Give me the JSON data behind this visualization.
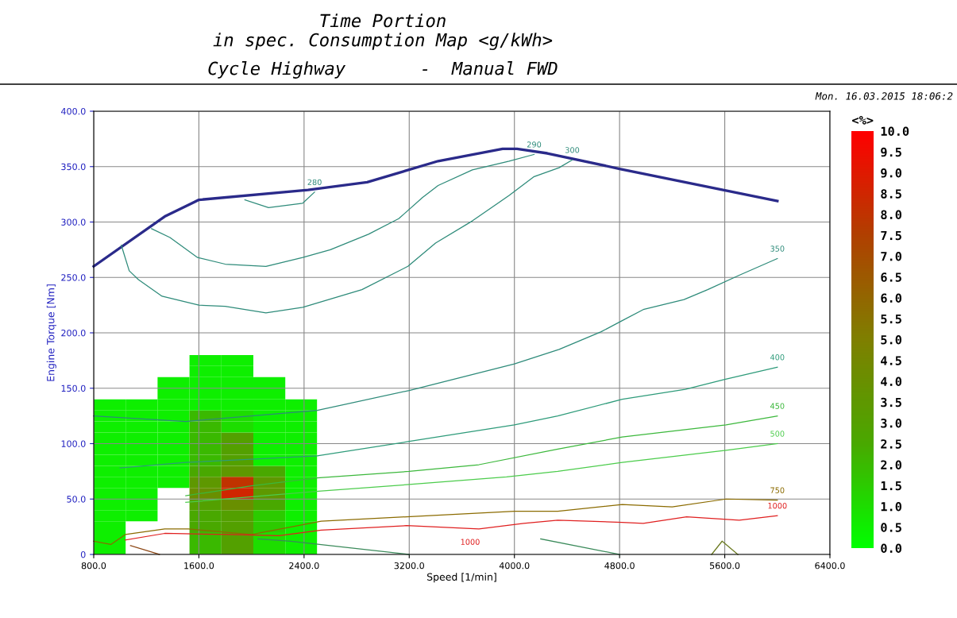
{
  "chart_data": [
    {
      "type": "heatmap",
      "clabel": "<%>",
      "clim": [
        0,
        10
      ],
      "cticks": [
        {
          "value": 0,
          "label": "0.0"
        },
        {
          "value": 0.5,
          "label": "0.5"
        },
        {
          "value": 1,
          "label": "1.0"
        },
        {
          "value": 1.5,
          "label": "1.5"
        },
        {
          "value": 2,
          "label": "2.0"
        },
        {
          "value": 2.5,
          "label": "2.5"
        },
        {
          "value": 3,
          "label": "3.0"
        },
        {
          "value": 3.5,
          "label": "3.5"
        },
        {
          "value": 4,
          "label": "4.0"
        },
        {
          "value": 4.5,
          "label": "4.5"
        },
        {
          "value": 5,
          "label": "5.0"
        },
        {
          "value": 5.5,
          "label": "5.5"
        },
        {
          "value": 6,
          "label": "6.0"
        },
        {
          "value": 6.5,
          "label": "6.5"
        },
        {
          "value": 7,
          "label": "7.0"
        },
        {
          "value": 7.5,
          "label": "7.5"
        },
        {
          "value": 8,
          "label": "8.0"
        },
        {
          "value": 8.5,
          "label": "8.5"
        },
        {
          "value": 9,
          "label": "9.0"
        },
        {
          "value": 9.5,
          "label": "9.5"
        },
        {
          "value": 10,
          "label": "10.0"
        }
      ],
      "categories": [
        null,
        null,
        null,
        null,
        null,
        null,
        null
      ],
      "y_categories": [
        null,
        null,
        null,
        null,
        null,
        null,
        null,
        null,
        null,
        null,
        null,
        null,
        null,
        null,
        null,
        null,
        null,
        null
      ],
      "cells": [
        [
          null,
          null,
          null,
          0.5,
          0.5,
          null,
          null
        ],
        [
          null,
          null,
          null,
          0.5,
          0.5,
          null,
          null
        ],
        [
          null,
          null,
          0.5,
          0.5,
          0.5,
          0.5,
          null
        ],
        [
          null,
          null,
          0.5,
          0.5,
          0.5,
          0.5,
          null
        ],
        [
          0.5,
          0.5,
          0.5,
          0.5,
          0.5,
          0.5,
          0.5
        ],
        [
          0.5,
          0.5,
          0.5,
          2.0,
          1.0,
          0.5,
          0.5
        ],
        [
          0.5,
          0.5,
          0.5,
          2.0,
          1.0,
          0.5,
          0.5
        ],
        [
          0.5,
          0.5,
          0.5,
          2.0,
          3.0,
          0.5,
          0.5
        ],
        [
          0.5,
          0.5,
          0.5,
          2.0,
          3.0,
          0.5,
          0.5
        ],
        [
          0.5,
          0.5,
          0.5,
          2.0,
          3.0,
          0.5,
          0.5
        ],
        [
          0.5,
          0.5,
          0.5,
          2.5,
          3.5,
          2.5,
          0.5
        ],
        [
          0.5,
          0.5,
          0.5,
          3.5,
          8.0,
          3.5,
          0.5
        ],
        [
          0.5,
          0.5,
          null,
          4.0,
          8.5,
          3.5,
          0.5
        ],
        [
          0.5,
          0.5,
          null,
          3.0,
          4.0,
          2.5,
          0.5
        ],
        [
          0.5,
          0.5,
          null,
          2.5,
          3.0,
          1.5,
          0.5
        ],
        [
          0.5,
          null,
          null,
          2.5,
          3.0,
          1.5,
          0.5
        ],
        [
          0.5,
          null,
          null,
          2.0,
          3.0,
          1.0,
          0.5
        ],
        [
          0.5,
          null,
          null,
          2.0,
          3.0,
          1.0,
          0.5
        ]
      ]
    },
    {
      "type": "line",
      "title": "Time Portion\nin spec. Consumption Map <g/kWh>",
      "subtitle": "Cycle Highway       -  Manual FWD",
      "xlabel": "Speed [1/min]",
      "ylabel": "Engine Torque [Nm]",
      "xlim": [
        800,
        6400
      ],
      "ylim": [
        0,
        400
      ],
      "xticks": [
        {
          "value": 800,
          "label": "800.0"
        },
        {
          "value": 1600,
          "label": "1600.0"
        },
        {
          "value": 2400,
          "label": "2400.0"
        },
        {
          "value": 3200,
          "label": "3200.0"
        },
        {
          "value": 4000,
          "label": "4000.0"
        },
        {
          "value": 4800,
          "label": "4800.0"
        },
        {
          "value": 5600,
          "label": "5600.0"
        },
        {
          "value": 6400,
          "label": "6400.0"
        }
      ],
      "yticks": [
        0,
        {
          "value": 50,
          "label": "50.0"
        },
        {
          "value": 100,
          "label": "100.0"
        },
        {
          "value": 150,
          "label": "150.0"
        },
        {
          "value": 200,
          "label": "200.0"
        },
        {
          "value": 250,
          "label": "250.0"
        },
        {
          "value": 300,
          "label": "300.0"
        },
        {
          "value": 350,
          "label": "350.0"
        },
        {
          "value": 400,
          "label": "400.0"
        }
      ],
      "grid": true,
      "legend": false,
      "marker": "none",
      "line_style": "solid",
      "annotations": [
        "Mon. 16.03.2015 18:06:2",
        "1000"
      ],
      "series": [
        {
          "color": "#2a2a8a",
          "x": [
            800,
            1340,
            1600,
            2430,
            2880,
            3420,
            3910,
            4020,
            4250,
            4800,
            6000
          ],
          "values": [
            260,
            305,
            320,
            329,
            336,
            355,
            366,
            366,
            362,
            348,
            319
          ]
        },
        {
          "name": "280",
          "color": "#2e8b7a",
          "x": [
            1950,
            2130,
            2390,
            2480
          ],
          "values": [
            320,
            313,
            317,
            327
          ]
        },
        {
          "name": "290",
          "color": "#2e8b7a",
          "x": [
            1240,
            1380,
            1590,
            1800,
            2110,
            2390,
            2600,
            2890,
            3120,
            3300,
            3420,
            3680,
            3960,
            4150
          ],
          "values": [
            294,
            286,
            268,
            262,
            260,
            268,
            275,
            289,
            303,
            322,
            333,
            347,
            355,
            361
          ]
        },
        {
          "name": "300",
          "color": "#2e8b7a",
          "x": [
            1010,
            1070,
            1140,
            1320,
            1600,
            1800,
            2110,
            2390,
            2840,
            3190,
            3400,
            3680,
            3960,
            4150,
            4340,
            4440
          ],
          "values": [
            279,
            256,
            248,
            233,
            225,
            224,
            218,
            223,
            239,
            260,
            281,
            301,
            324,
            341,
            349,
            356
          ]
        },
        {
          "name": "350",
          "color": "#2e8b7a",
          "x": [
            800,
            1500,
            2000,
            2500,
            3200,
            4000,
            4340,
            4660,
            4820,
            4980,
            5290,
            5470,
            5710,
            6000
          ],
          "values": [
            125,
            120,
            125,
            130,
            148,
            172,
            185,
            201,
            211,
            221,
            230,
            239,
            252,
            267
          ]
        },
        {
          "name": "400",
          "color": "#2e9b7a",
          "x": [
            1000,
            1500,
            2000,
            2500,
            3200,
            4000,
            4330,
            4820,
            5300,
            5600,
            6000
          ],
          "values": [
            78,
            83,
            86,
            89,
            102,
            117,
            125,
            140,
            149,
            158,
            169
          ]
        },
        {
          "name": "450",
          "color": "#3cb83c",
          "x": [
            1500,
            2000,
            2500,
            3200,
            3730,
            4330,
            4820,
            5610,
            6000
          ],
          "values": [
            53,
            62,
            69,
            75,
            81,
            95,
            106,
            117,
            125
          ]
        },
        {
          "name": "500",
          "color": "#4ccc4c",
          "x": [
            1500,
            2000,
            2510,
            3180,
            3940,
            4330,
            4820,
            5610,
            6000
          ],
          "values": [
            47,
            52,
            57,
            63,
            70,
            75,
            83,
            94,
            100
          ]
        },
        {
          "name": "750",
          "color": "#8b6b00",
          "x": [
            800,
            930,
            1040,
            1340,
            1520,
            2000,
            2530,
            3180,
            4000,
            4330,
            4820,
            5200,
            5610,
            6000
          ],
          "values": [
            12,
            9,
            18,
            23,
            23,
            18,
            30,
            34,
            39,
            39,
            45,
            43,
            50,
            49
          ]
        },
        {
          "name": "1000",
          "color": "#e02020",
          "x": [
            1040,
            1340,
            1840,
            2210,
            2530,
            3180,
            3730,
            4070,
            4330,
            4820,
            4980,
            5310,
            5710,
            6000
          ],
          "values": [
            13,
            19,
            18,
            17,
            22,
            26,
            23,
            28,
            31,
            29,
            28,
            34,
            31,
            35
          ]
        },
        {
          "color": "#3a8a5a",
          "x": [
            2050,
            2300,
            3200
          ],
          "values": [
            14,
            12,
            0
          ]
        },
        {
          "color": "#3a8a5a",
          "x": [
            4200,
            4800
          ],
          "values": [
            14,
            0
          ]
        },
        {
          "color": "#6b7a20",
          "x": [
            5500,
            5580,
            5700
          ],
          "values": [
            0,
            12,
            0
          ]
        },
        {
          "color": "#8b4513",
          "x": [
            1080,
            1300
          ],
          "values": [
            8,
            0
          ]
        }
      ]
    }
  ]
}
